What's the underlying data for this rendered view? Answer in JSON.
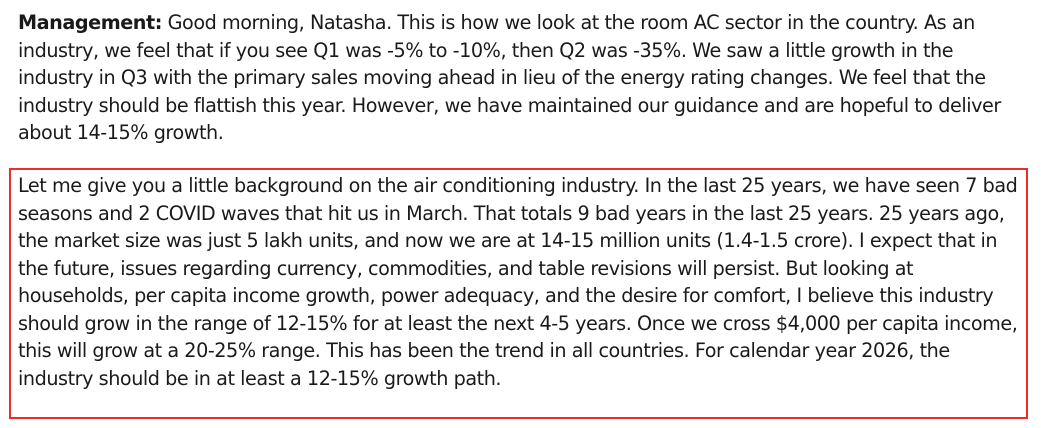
{
  "transcript": {
    "first": {
      "speaker": "Management:",
      "text": " Good morning, Natasha. This is how we look at the room AC sector in the country. As an industry, we feel that if you see Q1 was -5% to -10%, then Q2 was -35%. We saw a little growth in the industry in Q3 with the primary sales moving ahead in lieu of the energy rating changes. We feel that the industry should be flattish this year. However, we have maintained our guidance and are hopeful to deliver about 14-15% growth."
    },
    "highlighted": {
      "text": "Let me give you a little background on the air conditioning industry. In the last 25 years, we have seen 7 bad seasons and 2 COVID waves that hit us in March. That totals 9 bad years in the last 25 years. 25 years ago, the market size was just 5 lakh units, and now we are at 14-15 million units (1.4-1.5 crore). I expect that in the future, issues regarding currency, commodities, and table revisions will persist. But looking at households, per capita income growth, power adequacy, and the desire for comfort, I believe this industry should grow in the range of 12-15% for at least the next 4-5 years. Once we cross $4,000 per capita income, this will grow at a 20-25% range. This has been the trend in all countries. For calendar year 2026, the industry should be in at least a 12-15% growth path.",
      "border_color": "#e8302a"
    }
  }
}
